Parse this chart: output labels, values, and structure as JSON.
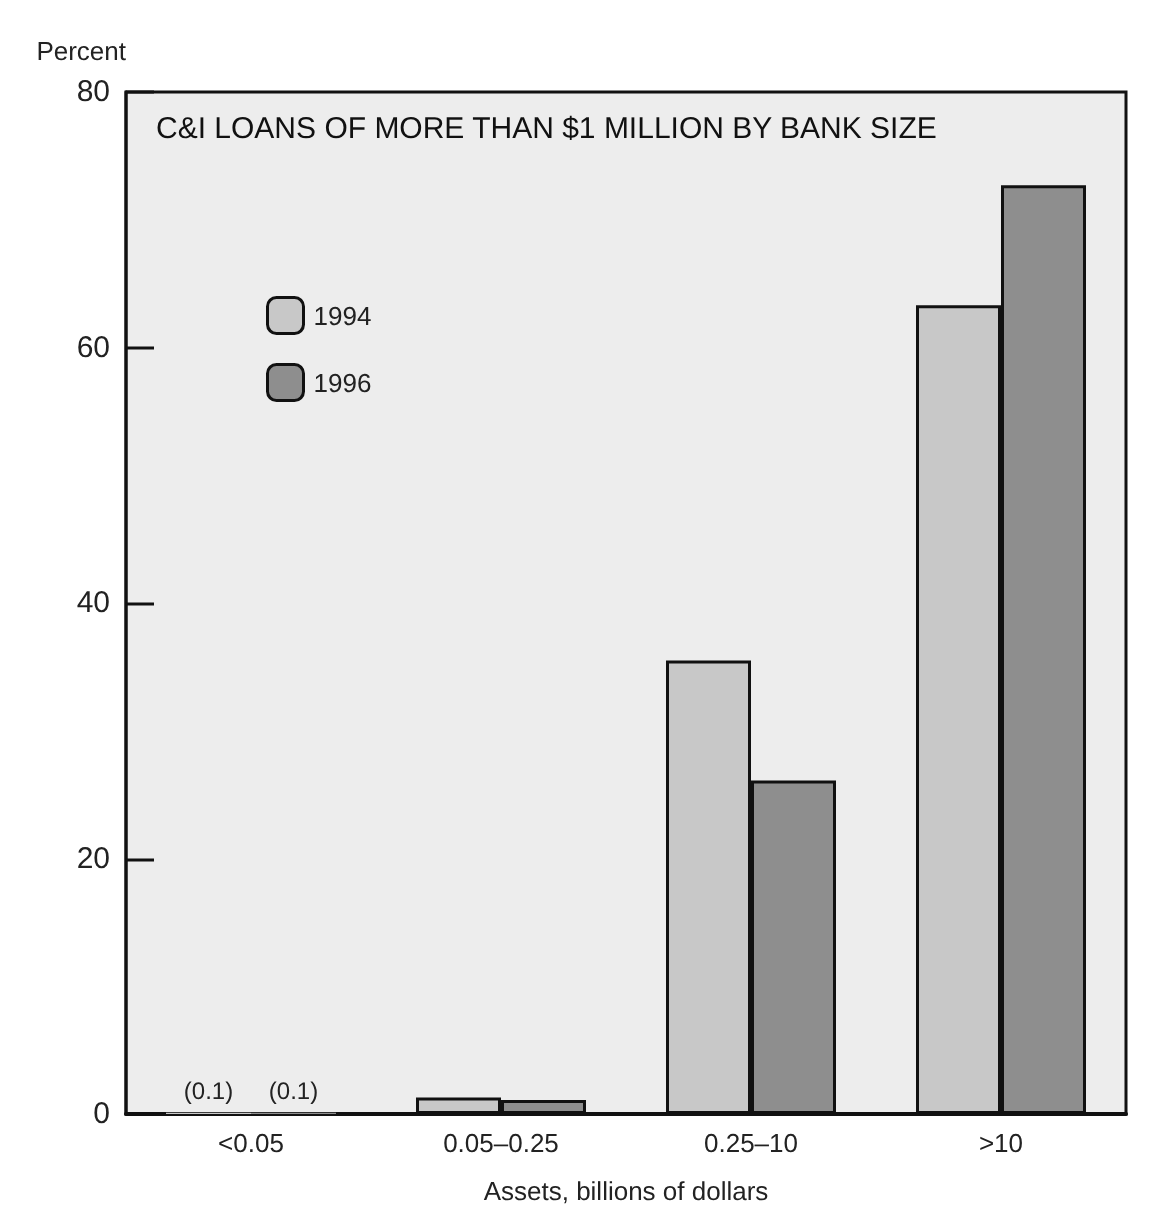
{
  "chart_data": {
    "type": "bar",
    "title": "C&I LOANS OF MORE THAN $1 MILLION BY BANK SIZE",
    "ylabel": "Percent",
    "xlabel": "Assets, billions of dollars",
    "categories": [
      "<0.05",
      "0.05–0.25",
      "0.25–10",
      ">10"
    ],
    "series": [
      {
        "name": "1994",
        "color": "#c8c8c8",
        "values": [
          0.1,
          1.3,
          35.5,
          63.3
        ],
        "value_labels": [
          "(0.1)",
          null,
          null,
          null
        ]
      },
      {
        "name": "1996",
        "color": "#8e8e8e",
        "values": [
          0.1,
          1.1,
          26.1,
          72.7
        ],
        "value_labels": [
          "(0.1)",
          null,
          null,
          null
        ]
      }
    ],
    "ylim": [
      0,
      80
    ],
    "yticks": [
      0,
      20,
      40,
      60,
      80
    ],
    "grid": false,
    "legend": "top left"
  }
}
